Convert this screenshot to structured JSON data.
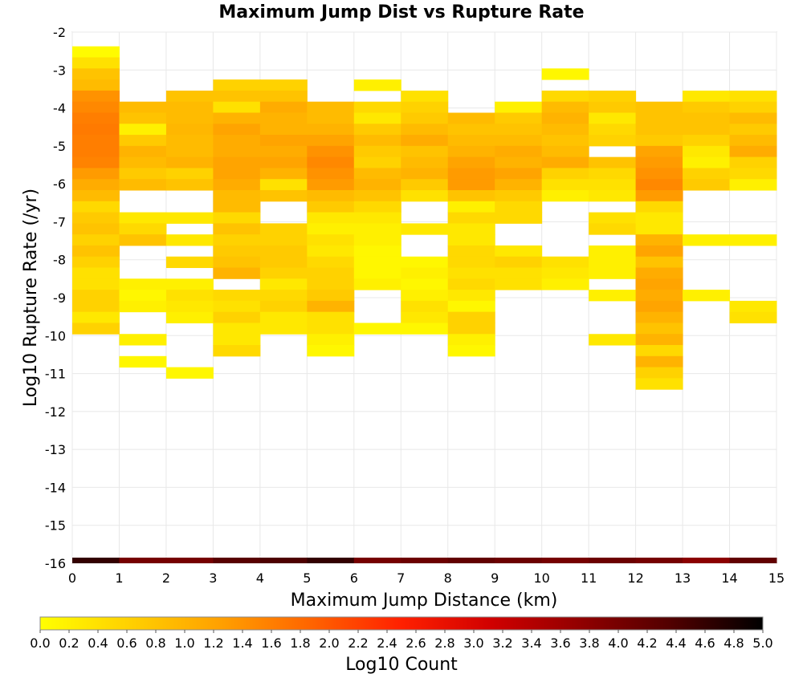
{
  "chart_data": {
    "type": "heatmap",
    "title": "Maximum Jump Dist vs Rupture Rate",
    "xlabel": "Maximum Jump Distance (km)",
    "ylabel": "Log10 Rupture Rate (/yr)",
    "xlim": [
      0,
      15
    ],
    "ylim": [
      -16,
      -2
    ],
    "x_ticks": [
      "0",
      "1",
      "2",
      "3",
      "4",
      "5",
      "6",
      "7",
      "8",
      "9",
      "10",
      "11",
      "12",
      "13",
      "14",
      "15"
    ],
    "y_ticks": [
      "-2",
      "-3",
      "-4",
      "-5",
      "-6",
      "-7",
      "-8",
      "-9",
      "-10",
      "-11",
      "-12",
      "-13",
      "-14",
      "-15",
      "-16"
    ],
    "grid": true,
    "x_bin_width": 1,
    "y_bin_width": 0.2916,
    "colorbar": {
      "label": "Log10 Count",
      "min": 0.0,
      "max": 5.0,
      "placement": "bottom",
      "ticks": [
        "0.0",
        "0.2",
        "0.4",
        "0.6",
        "0.8",
        "1.0",
        "1.2",
        "1.4",
        "1.6",
        "1.8",
        "2.0",
        "2.2",
        "2.4",
        "2.6",
        "2.8",
        "3.0",
        "3.2",
        "3.4",
        "3.6",
        "3.8",
        "4.0",
        "4.2",
        "4.4",
        "4.6",
        "4.8",
        "5.0"
      ],
      "colors": [
        "#ffff00",
        "#ffd000",
        "#ffa000",
        "#ff6400",
        "#ff2000",
        "#d00000",
        "#900000",
        "#500000",
        "#000000"
      ]
    },
    "columns": [
      {
        "x": 0,
        "y_start": -2.375,
        "values": [
          0.05,
          0.4,
          0.8,
          0.9,
          1.4,
          1.5,
          1.6,
          1.65,
          1.6,
          1.6,
          1.55,
          1.3,
          1.1,
          0.9,
          0.5,
          0.7,
          0.8,
          0.6,
          0.8,
          0.6,
          0.4,
          0.4,
          0.6,
          0.6,
          0.3,
          0.6,
          null,
          null,
          null,
          null,
          null,
          null,
          null,
          null,
          null,
          null,
          null,
          null,
          null,
          null,
          null,
          null,
          null,
          null,
          null,
          null,
          null,
          null
        ]
      },
      {
        "x": 1,
        "y_start": -3.833,
        "values": [
          0.9,
          0.8,
          0.2,
          0.7,
          1.0,
          0.9,
          0.7,
          0.9,
          null,
          null,
          0.3,
          0.5,
          0.8,
          null,
          null,
          null,
          0.2,
          0.1,
          0.2,
          null,
          null,
          0.2,
          null,
          0.1,
          null,
          null,
          null,
          null,
          null,
          null,
          null,
          null,
          null,
          null,
          null,
          null,
          null,
          null,
          null,
          null,
          null,
          null,
          null,
          null,
          null,
          null,
          null,
          null
        ]
      },
      {
        "x": 2,
        "y_start": -3.542,
        "values": [
          0.8,
          0.9,
          0.9,
          0.95,
          0.9,
          0.9,
          1.0,
          0.6,
          0.8,
          null,
          null,
          0.3,
          null,
          0.3,
          null,
          0.5,
          null,
          0.2,
          0.4,
          0.3,
          0.2,
          null,
          null,
          null,
          null,
          0.1,
          null,
          null,
          null,
          null,
          null,
          null,
          null,
          null,
          null,
          null,
          null,
          null,
          null,
          null,
          null,
          null,
          null,
          null,
          null,
          null,
          null,
          null
        ]
      },
      {
        "x": 3,
        "y_start": -3.25,
        "values": [
          0.6,
          0.8,
          0.4,
          1.0,
          1.2,
          1.1,
          1.1,
          1.2,
          1.2,
          1.1,
          0.9,
          0.9,
          0.5,
          0.8,
          0.6,
          0.7,
          0.8,
          1.0,
          null,
          0.5,
          0.4,
          0.6,
          0.3,
          0.3,
          0.5,
          null,
          null,
          null,
          null,
          null,
          null,
          null,
          null,
          null,
          null,
          null,
          null,
          null,
          null,
          null,
          null,
          null,
          null,
          null,
          null,
          null,
          null,
          null
        ]
      },
      {
        "x": 4,
        "y_start": -3.25,
        "values": [
          0.6,
          0.8,
          1.1,
          1.0,
          1.0,
          1.2,
          1.1,
          1.2,
          1.0,
          0.4,
          0.8,
          null,
          null,
          0.6,
          0.6,
          0.7,
          0.7,
          0.6,
          0.3,
          0.5,
          0.6,
          0.3,
          0.3,
          null,
          null,
          null,
          null,
          null,
          null,
          null,
          null,
          null,
          null,
          null,
          null,
          null,
          null,
          null,
          null,
          null,
          null,
          null,
          null,
          null,
          null,
          null,
          null,
          null
        ]
      },
      {
        "x": 5,
        "y_start": -3.833,
        "values": [
          0.9,
          0.9,
          1.0,
          1.2,
          1.4,
          1.5,
          1.4,
          1.3,
          0.9,
          0.7,
          0.3,
          0.2,
          0.4,
          0.3,
          0.5,
          0.6,
          0.6,
          0.7,
          1.0,
          0.4,
          0.4,
          0.2,
          0.1,
          null,
          null,
          null,
          null,
          null,
          null,
          null,
          null,
          null,
          null,
          null,
          null,
          null,
          null,
          null,
          null,
          null,
          null,
          null,
          null,
          null,
          null,
          null,
          null,
          null
        ]
      },
      {
        "x": 6,
        "y_start": -3.25,
        "values": [
          0.2,
          null,
          0.5,
          0.3,
          0.7,
          0.9,
          0.7,
          0.6,
          0.9,
          1.0,
          0.8,
          0.5,
          0.3,
          0.2,
          0.2,
          0.1,
          0.1,
          0.1,
          0.2,
          null,
          null,
          null,
          0.1,
          null,
          null,
          null,
          null,
          null,
          null,
          null,
          null,
          null,
          null,
          null,
          null,
          null,
          null,
          null,
          null,
          null,
          null,
          null,
          null,
          null,
          null,
          null,
          null,
          null
        ]
      },
      {
        "x": 7,
        "y_start": -3.542,
        "values": [
          0.4,
          0.6,
          0.7,
          0.9,
          1.1,
          0.8,
          0.9,
          1.0,
          0.7,
          0.4,
          null,
          null,
          0.3,
          null,
          null,
          0.1,
          0.2,
          0.1,
          0.2,
          0.4,
          0.3,
          0.1,
          null,
          null,
          null,
          null,
          null,
          null,
          null,
          null,
          null,
          null,
          null,
          null,
          null,
          null,
          null,
          null,
          null,
          null,
          null,
          null,
          null,
          null,
          null,
          null,
          null,
          null
        ]
      },
      {
        "x": 8,
        "y_start": -4.125,
        "values": [
          0.9,
          0.8,
          0.9,
          1.0,
          1.2,
          1.3,
          1.3,
          0.8,
          0.2,
          0.5,
          0.3,
          0.3,
          0.5,
          0.5,
          0.4,
          0.5,
          0.3,
          0.1,
          0.6,
          0.6,
          0.2,
          0.1,
          null,
          null,
          null,
          null,
          null,
          null,
          null,
          null,
          null,
          null,
          null,
          null,
          null,
          null,
          null,
          null,
          null,
          null,
          null,
          null,
          null,
          null,
          null,
          null,
          null,
          null
        ]
      },
      {
        "x": 9,
        "y_start": -3.833,
        "values": [
          0.2,
          0.7,
          0.8,
          0.9,
          1.1,
          1.0,
          1.2,
          1.0,
          0.7,
          0.5,
          0.5,
          null,
          null,
          0.3,
          0.6,
          0.4,
          0.4,
          null,
          null,
          null,
          null,
          null,
          null,
          null,
          null,
          null,
          null,
          null,
          null,
          null,
          null,
          null,
          null,
          null,
          null,
          null,
          null,
          null,
          null,
          null,
          null,
          null,
          null,
          null,
          null,
          null,
          null,
          null
        ]
      },
      {
        "x": 10,
        "y_start": -2.958,
        "values": [
          0.1,
          null,
          0.5,
          0.9,
          1.0,
          0.9,
          0.8,
          0.9,
          1.1,
          0.6,
          0.4,
          0.2,
          null,
          null,
          null,
          null,
          null,
          0.4,
          0.3,
          0.2,
          null,
          null,
          null,
          null,
          null,
          null,
          null,
          null,
          null,
          null,
          null,
          null,
          null,
          null,
          null,
          null,
          null,
          null,
          null,
          null,
          null,
          null,
          null,
          null,
          null,
          null,
          null,
          null
        ]
      },
      {
        "x": 11,
        "y_start": -3.542,
        "values": [
          0.6,
          0.7,
          0.3,
          0.5,
          0.6,
          null,
          0.8,
          0.5,
          0.4,
          0.3,
          null,
          0.4,
          0.5,
          null,
          0.2,
          0.2,
          0.2,
          null,
          0.2,
          null,
          null,
          null,
          0.3,
          null,
          null,
          null,
          null,
          null,
          null,
          null,
          null,
          null,
          null,
          null,
          null,
          null,
          null,
          null,
          null,
          null,
          null,
          null,
          null,
          null,
          null,
          null,
          null,
          null
        ]
      },
      {
        "x": 12,
        "y_start": -3.833,
        "values": [
          0.8,
          0.8,
          0.8,
          0.7,
          1.2,
          1.3,
          1.4,
          1.5,
          1.3,
          0.5,
          0.3,
          0.3,
          1.0,
          1.2,
          0.8,
          1.1,
          1.2,
          1.1,
          1.2,
          1.0,
          0.8,
          1.0,
          0.5,
          1.0,
          0.6,
          0.4,
          null,
          null,
          null,
          null,
          null,
          null,
          null,
          null,
          null,
          null,
          null,
          null,
          null,
          null,
          null,
          null,
          null,
          null,
          null,
          null,
          null,
          null
        ]
      },
      {
        "x": 13,
        "y_start": -3.542,
        "values": [
          0.3,
          0.7,
          0.8,
          0.8,
          0.6,
          0.3,
          0.2,
          0.6,
          0.7,
          null,
          null,
          null,
          null,
          0.2,
          null,
          null,
          null,
          null,
          0.2,
          null,
          null,
          null,
          null,
          null,
          null,
          null,
          null,
          null,
          null,
          null,
          null,
          null,
          null,
          null,
          null,
          null,
          null,
          null,
          null,
          null,
          null,
          null,
          null,
          null,
          null,
          null,
          null,
          null
        ]
      },
      {
        "x": 14,
        "y_start": -3.542,
        "values": [
          0.4,
          0.6,
          0.9,
          0.7,
          0.9,
          1.1,
          0.6,
          0.5,
          0.2,
          null,
          null,
          null,
          null,
          0.2,
          null,
          null,
          null,
          null,
          null,
          0.3,
          0.4,
          null,
          null,
          null,
          null,
          null,
          null,
          null,
          null,
          null,
          null,
          null,
          null,
          null,
          null,
          null,
          null,
          null,
          null,
          null,
          null,
          null,
          null,
          null,
          null,
          null,
          null,
          null
        ]
      }
    ],
    "bottom_row": {
      "y": -16,
      "values": [
        4.6,
        4.0,
        4.0,
        4.3,
        4.4,
        4.6,
        4.0,
        4.1,
        4.2,
        4.1,
        4.0,
        4.1,
        4.0,
        3.8,
        4.2
      ]
    }
  }
}
